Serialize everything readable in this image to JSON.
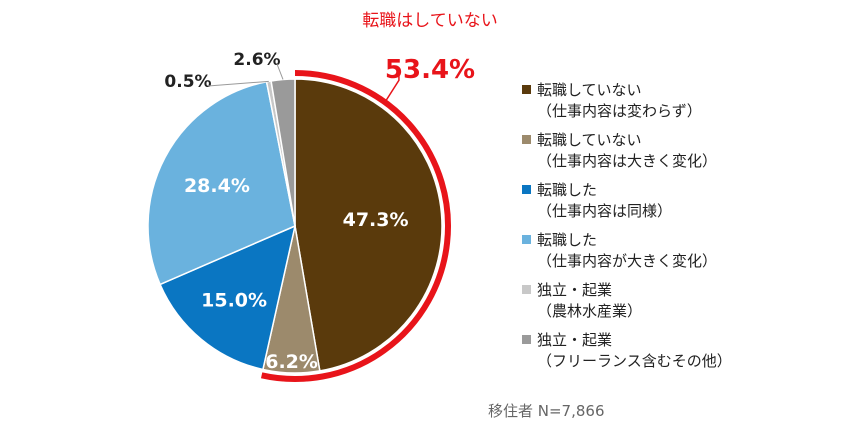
{
  "chart_data": {
    "type": "pie",
    "slices": [
      {
        "label": "47.3%",
        "value": 47.3,
        "legend_line1": "転職していない",
        "legend_line2": "（仕事内容は変わらず）",
        "color": "#5a3a0c",
        "label_color": "#ffffff"
      },
      {
        "label": "6.2%",
        "value": 6.2,
        "legend_line1": "転職していない",
        "legend_line2": "（仕事内容は大きく変化）",
        "color": "#9c8a6c",
        "label_color": "#ffffff"
      },
      {
        "label": "15.0%",
        "value": 15.0,
        "legend_line1": "転職した",
        "legend_line2": "（仕事内容は同様）",
        "color": "#0a76c2",
        "label_color": "#ffffff"
      },
      {
        "label": "28.4%",
        "value": 28.4,
        "legend_line1": "転職した",
        "legend_line2": "（仕事内容が大きく変化）",
        "color": "#6ab2de",
        "label_color": "#ffffff"
      },
      {
        "label": "0.5%",
        "value": 0.5,
        "legend_line1": "独立・起業",
        "legend_line2": "（農林水産業）",
        "color": "#c8c8c8",
        "label_color": "#222222"
      },
      {
        "label": "2.6%",
        "value": 2.6,
        "legend_line1": "独立・起業",
        "legend_line2": "（フリーランス含むその他）",
        "color": "#9a9a9a",
        "label_color": "#222222"
      }
    ],
    "highlight": {
      "title": "転職はしていない",
      "total_label": "53.4%",
      "color": "#e8141a"
    }
  },
  "footnote": "移住者 N=7,866"
}
